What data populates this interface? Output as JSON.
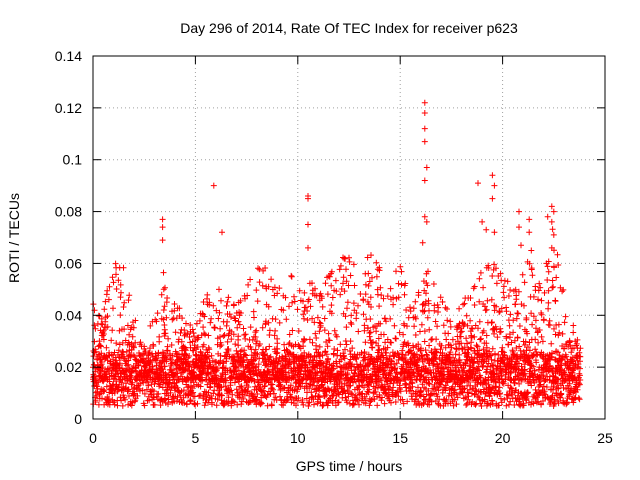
{
  "chart_data": {
    "type": "scatter",
    "title": "Day 296 of 2014, Rate Of TEC Index for receiver p623",
    "xlabel": "GPS time / hours",
    "ylabel": "ROTI / TECUs",
    "xlim": [
      0,
      25
    ],
    "ylim": [
      0,
      0.14
    ],
    "x_ticks": [
      0,
      5,
      10,
      15,
      20,
      25
    ],
    "x_tick_labels": [
      "0",
      "5",
      "10",
      "15",
      "20",
      "25"
    ],
    "y_ticks": [
      0,
      0.02,
      0.04,
      0.06,
      0.08,
      0.1,
      0.12,
      0.14
    ],
    "y_tick_labels": [
      "0",
      "0.02",
      "0.04",
      "0.06",
      "0.08",
      "0.1",
      "0.12",
      "0.14"
    ],
    "grid": true,
    "marker": "+",
    "color": "#ff0000",
    "series": [
      {
        "name": "ROTI",
        "x_range": [
          0,
          23.8
        ],
        "baseline_range": [
          0.005,
          0.025
        ],
        "burst_envelope": [
          {
            "x": 0.0,
            "y": 0.045
          },
          {
            "x": 0.3,
            "y": 0.04
          },
          {
            "x": 1.0,
            "y": 0.06
          },
          {
            "x": 1.5,
            "y": 0.06
          },
          {
            "x": 2.0,
            "y": 0.04
          },
          {
            "x": 2.5,
            "y": 0.03
          },
          {
            "x": 3.0,
            "y": 0.04
          },
          {
            "x": 3.4,
            "y": 0.058
          },
          {
            "x": 4.0,
            "y": 0.045
          },
          {
            "x": 5.0,
            "y": 0.035
          },
          {
            "x": 5.5,
            "y": 0.05
          },
          {
            "x": 6.3,
            "y": 0.05
          },
          {
            "x": 7.0,
            "y": 0.045
          },
          {
            "x": 8.2,
            "y": 0.062
          },
          {
            "x": 9.0,
            "y": 0.05
          },
          {
            "x": 9.7,
            "y": 0.056
          },
          {
            "x": 10.5,
            "y": 0.055
          },
          {
            "x": 11.0,
            "y": 0.05
          },
          {
            "x": 12.2,
            "y": 0.065
          },
          {
            "x": 12.8,
            "y": 0.06
          },
          {
            "x": 13.7,
            "y": 0.064
          },
          {
            "x": 14.5,
            "y": 0.05
          },
          {
            "x": 15.0,
            "y": 0.065
          },
          {
            "x": 15.5,
            "y": 0.045
          },
          {
            "x": 16.2,
            "y": 0.06
          },
          {
            "x": 16.8,
            "y": 0.05
          },
          {
            "x": 17.5,
            "y": 0.04
          },
          {
            "x": 18.3,
            "y": 0.05
          },
          {
            "x": 19.0,
            "y": 0.06
          },
          {
            "x": 19.7,
            "y": 0.06
          },
          {
            "x": 20.5,
            "y": 0.05
          },
          {
            "x": 21.3,
            "y": 0.062
          },
          {
            "x": 22.0,
            "y": 0.05
          },
          {
            "x": 22.4,
            "y": 0.08
          },
          {
            "x": 23.0,
            "y": 0.05
          },
          {
            "x": 23.8,
            "y": 0.03
          }
        ],
        "outliers": [
          {
            "x": 3.4,
            "y": 0.077
          },
          {
            "x": 3.4,
            "y": 0.074
          },
          {
            "x": 3.4,
            "y": 0.069
          },
          {
            "x": 5.9,
            "y": 0.09
          },
          {
            "x": 6.3,
            "y": 0.072
          },
          {
            "x": 10.5,
            "y": 0.086
          },
          {
            "x": 10.5,
            "y": 0.085
          },
          {
            "x": 10.5,
            "y": 0.075
          },
          {
            "x": 10.5,
            "y": 0.066
          },
          {
            "x": 16.2,
            "y": 0.122
          },
          {
            "x": 16.2,
            "y": 0.118
          },
          {
            "x": 16.2,
            "y": 0.112
          },
          {
            "x": 16.2,
            "y": 0.107
          },
          {
            "x": 16.3,
            "y": 0.097
          },
          {
            "x": 16.2,
            "y": 0.092
          },
          {
            "x": 16.2,
            "y": 0.078
          },
          {
            "x": 16.3,
            "y": 0.076
          },
          {
            "x": 16.1,
            "y": 0.068
          },
          {
            "x": 18.8,
            "y": 0.091
          },
          {
            "x": 19.0,
            "y": 0.076
          },
          {
            "x": 19.2,
            "y": 0.073
          },
          {
            "x": 19.5,
            "y": 0.094
          },
          {
            "x": 19.6,
            "y": 0.09
          },
          {
            "x": 19.5,
            "y": 0.085
          },
          {
            "x": 19.6,
            "y": 0.072
          },
          {
            "x": 20.8,
            "y": 0.08
          },
          {
            "x": 20.8,
            "y": 0.074
          },
          {
            "x": 20.9,
            "y": 0.067
          },
          {
            "x": 21.3,
            "y": 0.077
          },
          {
            "x": 21.3,
            "y": 0.072
          },
          {
            "x": 21.4,
            "y": 0.065
          },
          {
            "x": 22.2,
            "y": 0.078
          },
          {
            "x": 22.4,
            "y": 0.082
          },
          {
            "x": 22.5,
            "y": 0.08
          },
          {
            "x": 22.4,
            "y": 0.076
          },
          {
            "x": 22.5,
            "y": 0.071
          },
          {
            "x": 22.4,
            "y": 0.066
          }
        ]
      }
    ]
  }
}
